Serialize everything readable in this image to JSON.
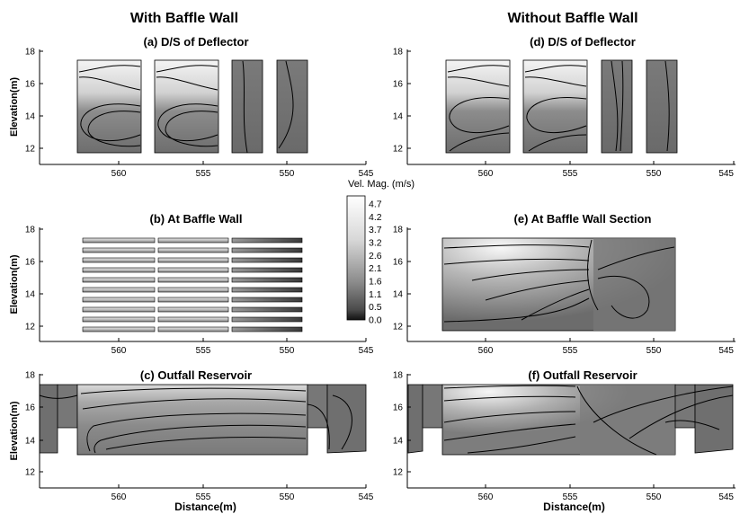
{
  "headers": {
    "left": "With Baffle Wall",
    "right": "Without Baffle Wall"
  },
  "colorbar": {
    "title": "Vel. Mag. (m/s)",
    "levels": [
      "4.7",
      "4.2",
      "3.7",
      "3.2",
      "2.6",
      "2.1",
      "1.6",
      "1.1",
      "0.5",
      "0.0"
    ],
    "min": 0.0,
    "max": 4.7
  },
  "axis_labels": {
    "y": "Elevation(m)",
    "x": "Distance(m)"
  },
  "chart_data": [
    {
      "type": "heatmap",
      "title": "(a) D/S of Deflector",
      "ylabel": "Elevation(m)",
      "xlabel": "",
      "xlim": [
        565,
        545
      ],
      "ylim": [
        11,
        18
      ],
      "x_ticks": [
        "560",
        "555",
        "550",
        "545"
      ],
      "y_ticks": [
        "12",
        "14",
        "16",
        "18"
      ],
      "blocks": [
        [
          562.5,
          558.5
        ],
        [
          558,
          554
        ],
        [
          553.2,
          551.5
        ],
        [
          550.7,
          549
        ]
      ]
    },
    {
      "type": "heatmap",
      "title": "(b) At Baffle Wall",
      "ylabel": "Elevation(m)",
      "xlabel": "",
      "xlim": [
        565,
        545
      ],
      "ylim": [
        11,
        18
      ],
      "x_ticks": [
        "560",
        "555",
        "550",
        "545"
      ],
      "y_ticks": [
        "12",
        "14",
        "16",
        "18"
      ],
      "blocks": [
        [
          562.5,
          558.2
        ],
        [
          558,
          553.8
        ],
        [
          553.6,
          549.2
        ]
      ]
    },
    {
      "type": "heatmap",
      "title": "(c) Outfall Reservoir",
      "ylabel": "Elevation(m)",
      "xlabel": "Distance(m)",
      "xlim": [
        565,
        545
      ],
      "ylim": [
        11,
        18
      ],
      "x_ticks": [
        "560",
        "555",
        "550",
        "545"
      ],
      "y_ticks": [
        "12",
        "14",
        "16",
        "18"
      ]
    },
    {
      "type": "heatmap",
      "title": "(d) D/S of Deflector",
      "ylabel": "",
      "xlabel": "",
      "xlim": [
        565,
        545
      ],
      "ylim": [
        11,
        18
      ],
      "x_ticks": [
        "560",
        "555",
        "550",
        "545"
      ],
      "y_ticks": [
        "12",
        "14",
        "16",
        "18"
      ],
      "blocks": [
        [
          562.5,
          558.5
        ],
        [
          558,
          554
        ],
        [
          553.2,
          551.5
        ],
        [
          550.7,
          549
        ]
      ]
    },
    {
      "type": "heatmap",
      "title": "(e) At Baffle Wall Section",
      "ylabel": "",
      "xlabel": "",
      "xlim": [
        565,
        545
      ],
      "ylim": [
        11,
        18
      ],
      "x_ticks": [
        "560",
        "555",
        "550",
        "545"
      ],
      "y_ticks": [
        "12",
        "14",
        "16",
        "18"
      ]
    },
    {
      "type": "heatmap",
      "title": "(f) Outfall Reservoir",
      "ylabel": "",
      "xlabel": "Distance(m)",
      "xlim": [
        565,
        545
      ],
      "ylim": [
        11,
        18
      ],
      "x_ticks": [
        "560",
        "555",
        "550",
        "545"
      ],
      "y_ticks": [
        "12",
        "14",
        "16",
        "18"
      ]
    }
  ]
}
